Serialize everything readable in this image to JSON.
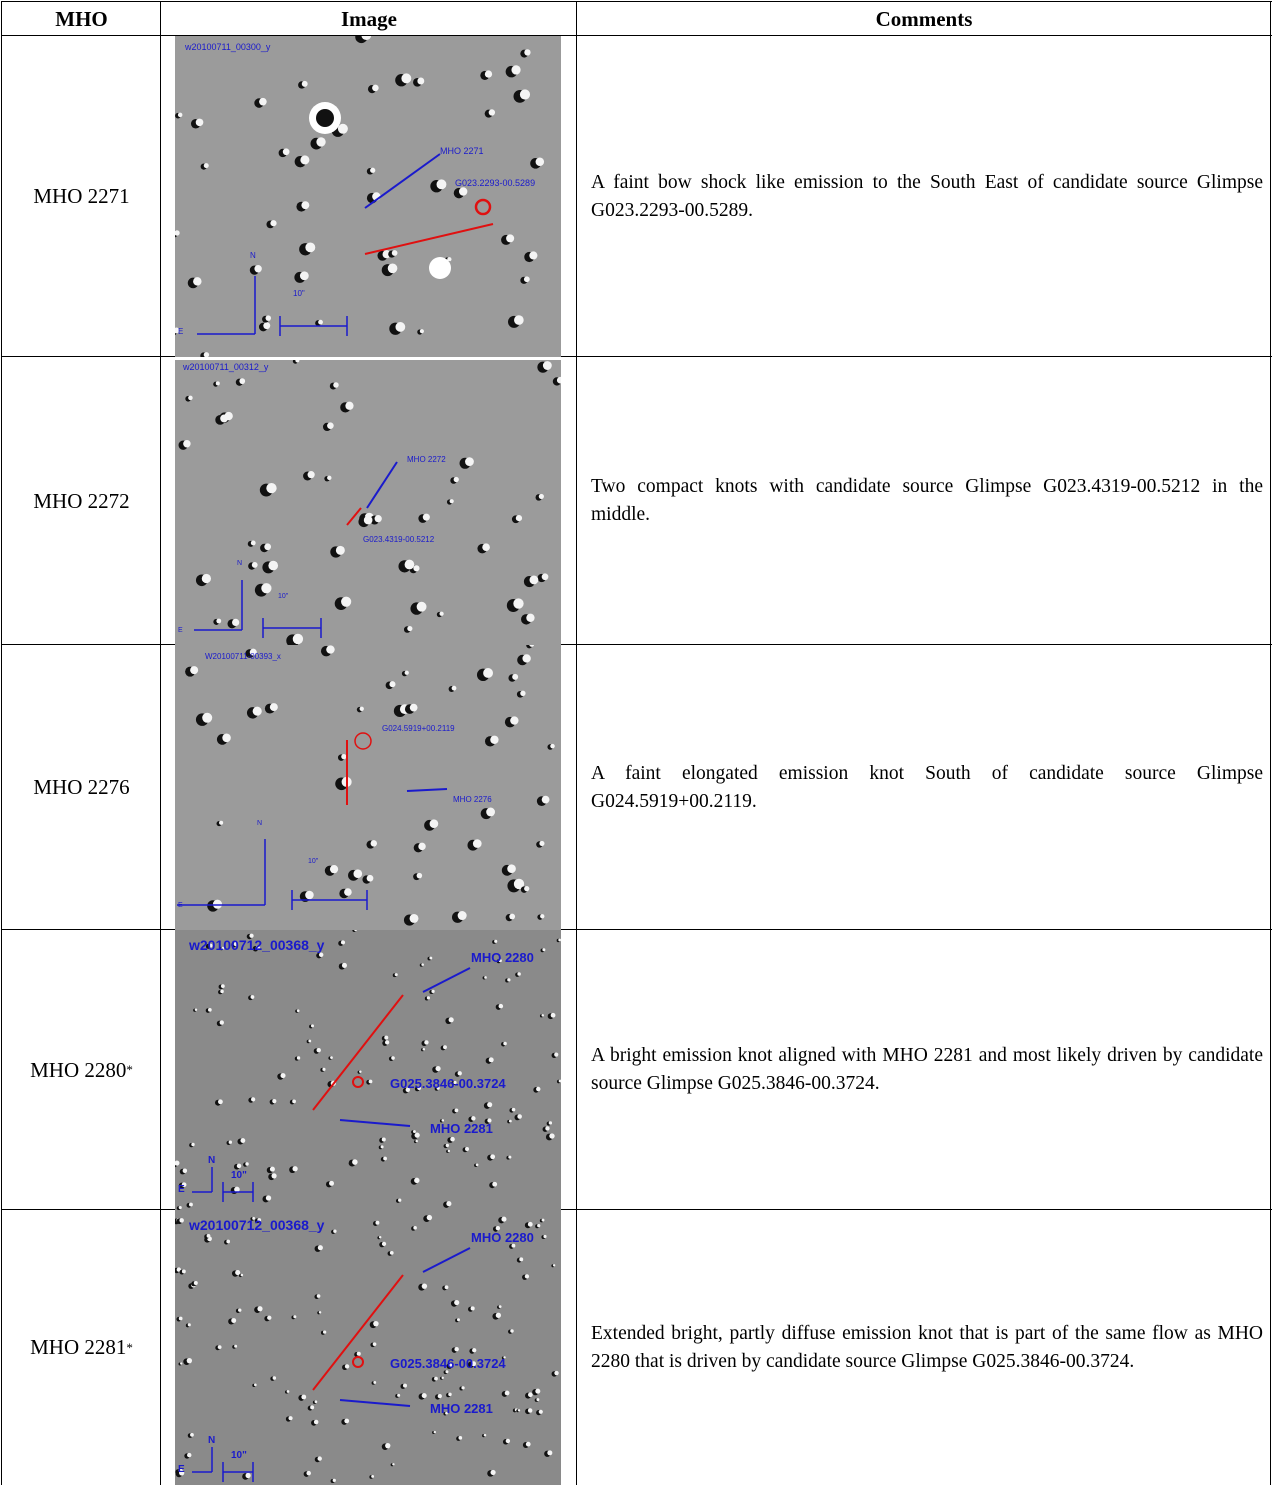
{
  "table": {
    "header": [
      "MHO",
      "Image",
      "Comments"
    ],
    "rows": [
      {
        "mho": "MHO 2271",
        "image_labels": [
          "w20100711_00300_y",
          "MHO 2271",
          "G023.2293-00.5289",
          "N",
          "E",
          "10\""
        ],
        "comment": "A faint bow shock like emission to the South East of candidate source Glimpse G023.2293-00.5289."
      },
      {
        "mho": "MHO 2272",
        "image_labels": [
          "w20100711_00312_y",
          "MHO 2272",
          "G023.4319-00.5212",
          "N",
          "E",
          "10\""
        ],
        "comment": "Two compact knots with candidate source Glimpse G023.4319-00.5212 in the middle."
      },
      {
        "mho": "MHO 2276",
        "image_labels": [
          "W20100711-00393_x",
          "G024.5919+00.2119",
          "MHO 2276",
          "N",
          "E",
          "10\""
        ],
        "comment": "A faint elongated emission knot South of candidate source Glimpse G024.5919+00.2119."
      },
      {
        "mho": "MHO 2280",
        "mark": "*",
        "image_labels": [
          "w20100712_00368_y",
          "MHO 2280",
          "G025.3846-00.3724",
          "MHO 2281",
          "N",
          "E",
          "10\""
        ],
        "comment": "A bright emission knot aligned with MHO 2281 and most likely driven by candidate source Glimpse G025.3846-00.3724."
      },
      {
        "mho": "MHO 2281",
        "mark": "*",
        "image_labels": [
          "w20100712_00368_y",
          "MHO 2280",
          "G025.3846-00.3724",
          "MHO 2281",
          "N",
          "E",
          "10\""
        ],
        "comment": "Extended bright, partly diffuse emission knot that is part of the same flow as MHO 2280 that is driven by candidate source Glimpse G025.3846-00.3724."
      }
    ]
  }
}
